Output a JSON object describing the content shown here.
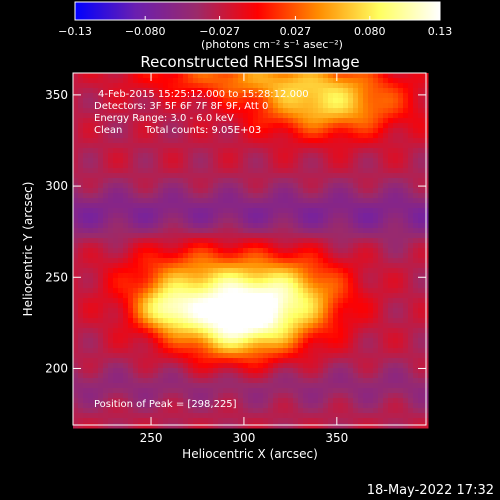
{
  "chart_data": {
    "type": "heatmap",
    "title": "Reconstructed RHESSI Image",
    "xlabel": "Heliocentric X (arcsec)",
    "ylabel": "Heliocentric Y (arcsec)",
    "xlim": [
      208,
      398
    ],
    "ylim": [
      169,
      362
    ],
    "x_ticks": [
      250,
      300,
      350
    ],
    "y_ticks": [
      200,
      250,
      300,
      350
    ],
    "colorbar": {
      "vmin": -0.13,
      "vmax": 0.13,
      "ticks": [
        -0.13,
        -0.08,
        -0.027,
        0.027,
        0.08,
        0.13
      ],
      "tick_labels": [
        "−0.13",
        "−0.080",
        "−0.027",
        "0.027",
        "0.080",
        "0.13"
      ],
      "unit_label": "(photons cm⁻² s⁻¹ asec⁻²)",
      "colormap_stops": [
        "#0000ff",
        "#6a1fb0",
        "#9b2a6a",
        "#ff0000",
        "#ff8c00",
        "#ffff60",
        "#ffffff"
      ]
    },
    "sources": [
      {
        "x": 296,
        "y": 225,
        "sigma_x": 22,
        "sigma_y": 14,
        "peak": 0.13
      },
      {
        "x": 275,
        "y": 245,
        "sigma_x": 28,
        "sigma_y": 16,
        "peak": 0.08
      },
      {
        "x": 325,
        "y": 240,
        "sigma_x": 22,
        "sigma_y": 15,
        "peak": 0.09
      },
      {
        "x": 258,
        "y": 232,
        "sigma_x": 10,
        "sigma_y": 8,
        "peak": 0.07
      },
      {
        "x": 345,
        "y": 345,
        "sigma_x": 28,
        "sigma_y": 12,
        "peak": 0.1
      },
      {
        "x": 300,
        "y": 360,
        "sigma_x": 40,
        "sigma_y": 8,
        "peak": 0.06
      }
    ],
    "peak_position": [
      298,
      225
    ]
  },
  "annotations": {
    "time_range": "4-Feb-2015 15:25:12.000 to 15:28:12.000",
    "detectors": "Detectors: 3F 5F 6F 7F 8F 9F, Att 0",
    "energy_range": "Energy Range: 3.0 - 6.0 keV",
    "algorithm": "Clean",
    "total_counts": "Total counts: 9.05E+03",
    "peak_text": "Position of Peak = [298,225]"
  },
  "footer": {
    "timestamp": "18-May-2022 17:32"
  }
}
